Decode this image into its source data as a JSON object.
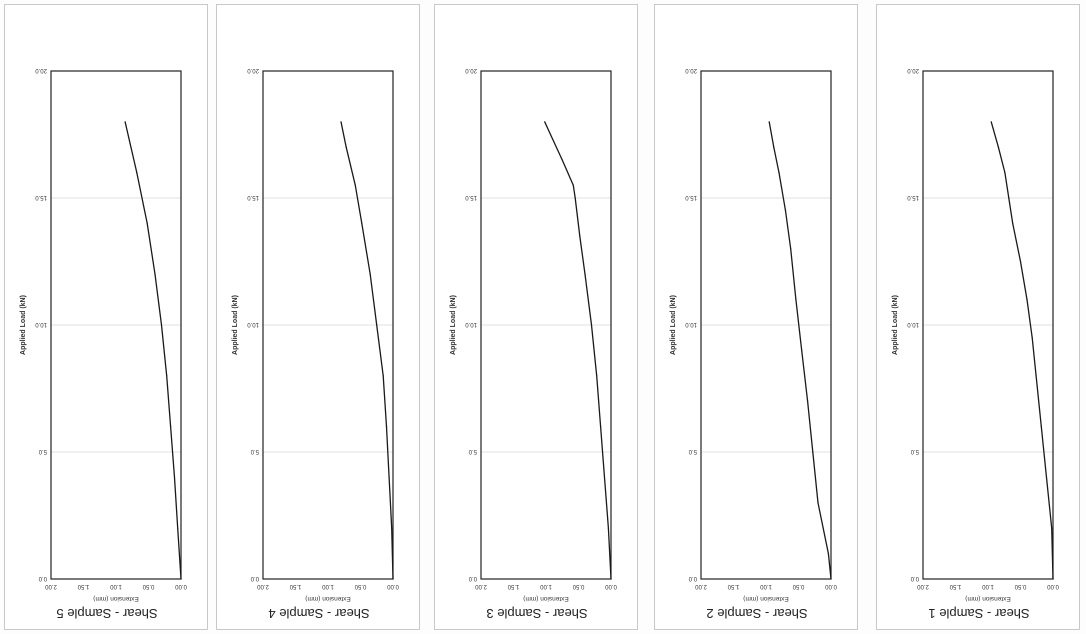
{
  "page": {
    "panel_order": [
      4,
      3,
      2,
      1,
      0
    ],
    "colors": {
      "line": "#1a1a1a",
      "frame": "#222222",
      "grid": "#d8d8d8",
      "panel_border": "#c9c9c9",
      "text": "#333333"
    }
  },
  "chart_data": [
    {
      "type": "line",
      "title": "Shear - Sample 1",
      "xlabel": "Applied Load (kN)",
      "ylabel": "Extension (mm)",
      "xlim": [
        0,
        20
      ],
      "ylim": [
        0,
        2
      ],
      "x_ticks": [
        "0.0",
        "5.0",
        "10.0",
        "15.0",
        "20.0"
      ],
      "y_ticks": [
        "0.00",
        "0.50",
        "1.00",
        "1.50",
        "2.00"
      ],
      "grid": true,
      "orientation": "rotated 180",
      "x": [
        0,
        2,
        4,
        6,
        8,
        9.5,
        11,
        12.5,
        14,
        15,
        16,
        17,
        18
      ],
      "y": [
        0,
        0.02,
        0.1,
        0.18,
        0.26,
        0.32,
        0.4,
        0.5,
        0.62,
        0.68,
        0.74,
        0.84,
        0.95
      ]
    },
    {
      "type": "line",
      "title": "Shear - Sample 2",
      "xlabel": "Applied Load (kN)",
      "ylabel": "Extension (mm)",
      "xlim": [
        0,
        20
      ],
      "ylim": [
        0,
        2
      ],
      "x_ticks": [
        "0.0",
        "5.0",
        "10.0",
        "15.0",
        "20.0"
      ],
      "y_ticks": [
        "0.00",
        "0.50",
        "1.00",
        "1.50",
        "2.00"
      ],
      "grid": true,
      "orientation": "rotated 180",
      "x": [
        0,
        1,
        3,
        5,
        7,
        9,
        11,
        13,
        14.5,
        16,
        17,
        18
      ],
      "y": [
        0,
        0.04,
        0.2,
        0.28,
        0.36,
        0.45,
        0.54,
        0.62,
        0.7,
        0.8,
        0.88,
        0.95
      ]
    },
    {
      "type": "line",
      "title": "Shear - Sample 3",
      "xlabel": "Applied Load (kN)",
      "ylabel": "Extension (mm)",
      "xlim": [
        0,
        20
      ],
      "ylim": [
        0,
        2
      ],
      "x_ticks": [
        "0.0",
        "5.0",
        "10.0",
        "15.0",
        "20.0"
      ],
      "y_ticks": [
        "0.00",
        "0.50",
        "1.00",
        "1.50",
        "2.00"
      ],
      "grid": true,
      "orientation": "rotated 180",
      "x": [
        0,
        2,
        4,
        6,
        8,
        10,
        12,
        13.5,
        15,
        15.5,
        16.5,
        17.5,
        18
      ],
      "y": [
        0,
        0.04,
        0.1,
        0.16,
        0.22,
        0.3,
        0.4,
        0.48,
        0.55,
        0.58,
        0.75,
        0.93,
        1.02
      ]
    },
    {
      "type": "line",
      "title": "Shear - Sample 4",
      "xlabel": "Applied Load (kN)",
      "ylabel": "Extension (mm)",
      "xlim": [
        0,
        20
      ],
      "ylim": [
        0,
        2
      ],
      "x_ticks": [
        "0.0",
        "5.0",
        "10.0",
        "15.0",
        "20.0"
      ],
      "y_ticks": [
        "0.00",
        "0.50",
        "1.00",
        "1.50",
        "2.00"
      ],
      "grid": true,
      "orientation": "rotated 180",
      "x": [
        0,
        2,
        4,
        6,
        8,
        10,
        12,
        14,
        15.5,
        17,
        18
      ],
      "y": [
        0,
        0.02,
        0.06,
        0.1,
        0.15,
        0.25,
        0.35,
        0.48,
        0.58,
        0.72,
        0.8
      ]
    },
    {
      "type": "line",
      "title": "Shear - Sample 5",
      "xlabel": "Applied Load (kN)",
      "ylabel": "Extension (mm)",
      "xlim": [
        0,
        20
      ],
      "ylim": [
        0,
        2
      ],
      "x_ticks": [
        "0.0",
        "5.0",
        "10.0",
        "15.0",
        "20.0"
      ],
      "y_ticks": [
        "0.00",
        "0.50",
        "1.00",
        "1.50",
        "2.00"
      ],
      "grid": true,
      "orientation": "rotated 180",
      "x": [
        0,
        2,
        4,
        6,
        8,
        10,
        12,
        14,
        16,
        18
      ],
      "y": [
        0,
        0.05,
        0.1,
        0.16,
        0.22,
        0.3,
        0.4,
        0.52,
        0.68,
        0.86
      ]
    }
  ]
}
